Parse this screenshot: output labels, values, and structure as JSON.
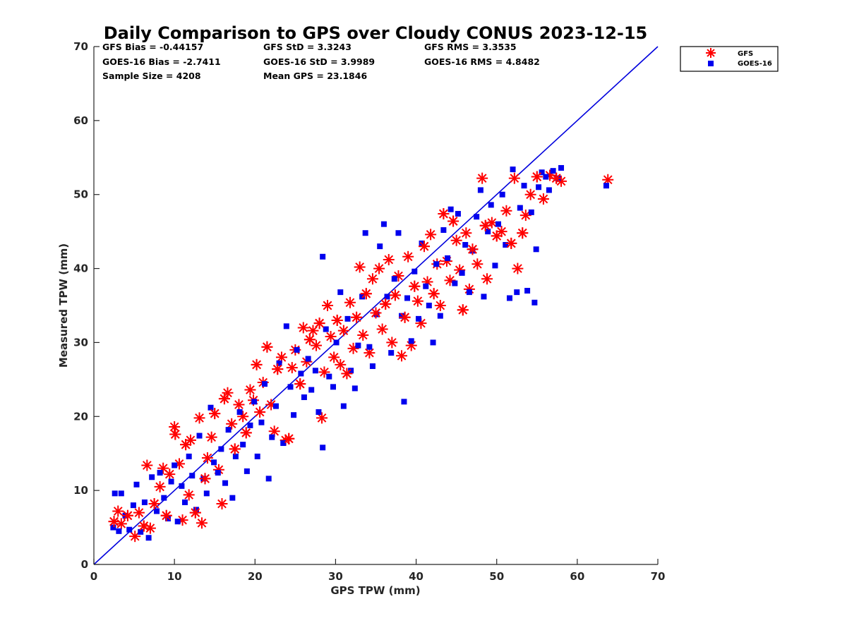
{
  "chart_data": {
    "type": "scatter",
    "title": "Daily Comparison to GPS over Cloudy CONUS 2023-12-15",
    "xlabel": "GPS TPW (mm)",
    "ylabel": "Measured TPW (mm)",
    "xlim": [
      0,
      70
    ],
    "ylim": [
      0,
      70
    ],
    "xticks": [
      "0",
      "10",
      "20",
      "30",
      "40",
      "50",
      "60",
      "70"
    ],
    "yticks": [
      "0",
      "10",
      "20",
      "30",
      "40",
      "50",
      "60",
      "70"
    ],
    "grid": false,
    "legend_position": "outside-top-right",
    "reference_line": {
      "from": [
        0,
        0
      ],
      "to": [
        70,
        70
      ],
      "color": "#0000dd"
    },
    "stats": [
      [
        "GFS Bias = -0.44157",
        "GFS StD = 3.3243",
        "GFS RMS = 3.3535"
      ],
      [
        "GOES-16 Bias = -2.7411",
        "GOES-16 StD = 3.9989",
        "GOES-16 RMS = 4.8482"
      ],
      [
        "Sample Size = 4208",
        "Mean GPS = 23.1846",
        ""
      ]
    ],
    "series": [
      {
        "name": "GFS",
        "marker": "asterisk",
        "color": "#ff0000",
        "points": [
          [
            2.5,
            5.8
          ],
          [
            3.0,
            7.2
          ],
          [
            3.4,
            5.5
          ],
          [
            4.2,
            6.6
          ],
          [
            5.1,
            3.8
          ],
          [
            5.6,
            7.0
          ],
          [
            6.2,
            5.2
          ],
          [
            6.6,
            13.4
          ],
          [
            7.0,
            4.9
          ],
          [
            7.5,
            8.2
          ],
          [
            8.2,
            10.5
          ],
          [
            8.6,
            13.0
          ],
          [
            9.0,
            6.6
          ],
          [
            9.4,
            12.2
          ],
          [
            10.0,
            18.6
          ],
          [
            10.1,
            17.6
          ],
          [
            10.6,
            13.6
          ],
          [
            11.0,
            6.0
          ],
          [
            11.4,
            16.2
          ],
          [
            11.8,
            9.4
          ],
          [
            12.0,
            16.8
          ],
          [
            12.6,
            7.0
          ],
          [
            13.1,
            19.8
          ],
          [
            13.4,
            5.6
          ],
          [
            13.8,
            11.6
          ],
          [
            14.1,
            14.4
          ],
          [
            14.6,
            17.2
          ],
          [
            15.0,
            20.4
          ],
          [
            15.5,
            12.8
          ],
          [
            15.9,
            8.2
          ],
          [
            16.2,
            22.4
          ],
          [
            16.6,
            23.2
          ],
          [
            17.1,
            19.0
          ],
          [
            17.5,
            15.6
          ],
          [
            18.0,
            21.6
          ],
          [
            18.5,
            20.0
          ],
          [
            18.9,
            17.8
          ],
          [
            19.4,
            23.6
          ],
          [
            19.8,
            22.2
          ],
          [
            20.2,
            27.0
          ],
          [
            20.6,
            20.6
          ],
          [
            21.0,
            24.6
          ],
          [
            21.5,
            29.4
          ],
          [
            22.0,
            21.6
          ],
          [
            22.4,
            18.0
          ],
          [
            22.8,
            26.4
          ],
          [
            23.3,
            28.0
          ],
          [
            23.8,
            16.8
          ],
          [
            24.2,
            17.0
          ],
          [
            24.6,
            26.6
          ],
          [
            25.0,
            29.0
          ],
          [
            25.6,
            24.4
          ],
          [
            26.0,
            32.0
          ],
          [
            26.4,
            27.4
          ],
          [
            26.8,
            30.4
          ],
          [
            27.2,
            31.6
          ],
          [
            27.6,
            29.6
          ],
          [
            28.0,
            32.6
          ],
          [
            28.3,
            19.8
          ],
          [
            28.6,
            26.0
          ],
          [
            29.0,
            35.0
          ],
          [
            29.4,
            30.8
          ],
          [
            29.8,
            28.0
          ],
          [
            30.2,
            33.0
          ],
          [
            30.6,
            27.0
          ],
          [
            31.0,
            31.6
          ],
          [
            31.4,
            25.8
          ],
          [
            31.8,
            35.4
          ],
          [
            32.2,
            29.2
          ],
          [
            32.6,
            33.4
          ],
          [
            33.0,
            40.2
          ],
          [
            33.4,
            31.0
          ],
          [
            33.8,
            36.6
          ],
          [
            34.2,
            28.6
          ],
          [
            34.6,
            38.6
          ],
          [
            35.0,
            34.0
          ],
          [
            35.4,
            40.0
          ],
          [
            35.8,
            31.8
          ],
          [
            36.2,
            35.2
          ],
          [
            36.6,
            41.2
          ],
          [
            37.0,
            30.0
          ],
          [
            37.4,
            36.4
          ],
          [
            37.8,
            39.0
          ],
          [
            38.2,
            28.2
          ],
          [
            38.6,
            33.4
          ],
          [
            39.0,
            41.6
          ],
          [
            39.4,
            29.6
          ],
          [
            39.8,
            37.6
          ],
          [
            40.2,
            35.6
          ],
          [
            40.6,
            32.6
          ],
          [
            41.0,
            43.0
          ],
          [
            41.4,
            38.2
          ],
          [
            41.8,
            44.6
          ],
          [
            42.2,
            36.6
          ],
          [
            42.6,
            40.6
          ],
          [
            43.0,
            35.0
          ],
          [
            43.4,
            47.4
          ],
          [
            43.8,
            41.0
          ],
          [
            44.2,
            38.4
          ],
          [
            44.6,
            46.4
          ],
          [
            45.0,
            43.8
          ],
          [
            45.4,
            39.8
          ],
          [
            45.8,
            34.4
          ],
          [
            46.2,
            44.8
          ],
          [
            46.6,
            37.2
          ],
          [
            47.0,
            42.6
          ],
          [
            47.6,
            40.6
          ],
          [
            48.2,
            52.2
          ],
          [
            48.6,
            45.8
          ],
          [
            48.8,
            38.6
          ],
          [
            49.4,
            46.2
          ],
          [
            50.0,
            44.4
          ],
          [
            50.6,
            45.0
          ],
          [
            51.2,
            47.8
          ],
          [
            51.8,
            43.4
          ],
          [
            52.2,
            52.2
          ],
          [
            52.6,
            40.0
          ],
          [
            53.2,
            44.8
          ],
          [
            53.6,
            47.2
          ],
          [
            54.2,
            50.0
          ],
          [
            55.0,
            52.4
          ],
          [
            55.8,
            49.4
          ],
          [
            56.6,
            52.6
          ],
          [
            57.4,
            52.2
          ],
          [
            58.0,
            51.8
          ],
          [
            63.8,
            52.0
          ]
        ]
      },
      {
        "name": "GOES-16",
        "marker": "square",
        "color": "#0000ee",
        "points": [
          [
            2.4,
            5.0
          ],
          [
            2.6,
            9.6
          ],
          [
            3.1,
            4.5
          ],
          [
            3.4,
            9.6
          ],
          [
            3.9,
            6.6
          ],
          [
            4.4,
            4.7
          ],
          [
            4.9,
            8.0
          ],
          [
            5.3,
            10.8
          ],
          [
            5.8,
            4.4
          ],
          [
            6.3,
            8.4
          ],
          [
            6.8,
            3.6
          ],
          [
            7.2,
            11.8
          ],
          [
            7.8,
            7.2
          ],
          [
            8.2,
            12.4
          ],
          [
            8.7,
            9.0
          ],
          [
            9.2,
            6.2
          ],
          [
            9.6,
            11.2
          ],
          [
            10.0,
            13.4
          ],
          [
            10.4,
            5.8
          ],
          [
            10.9,
            10.6
          ],
          [
            11.3,
            8.4
          ],
          [
            11.8,
            14.6
          ],
          [
            12.2,
            12.0
          ],
          [
            12.7,
            7.4
          ],
          [
            13.1,
            17.4
          ],
          [
            13.6,
            11.6
          ],
          [
            14.0,
            9.6
          ],
          [
            14.5,
            21.2
          ],
          [
            14.9,
            13.8
          ],
          [
            15.4,
            12.4
          ],
          [
            15.8,
            15.6
          ],
          [
            16.3,
            11.0
          ],
          [
            16.7,
            18.2
          ],
          [
            17.2,
            9.0
          ],
          [
            17.6,
            14.6
          ],
          [
            18.1,
            20.6
          ],
          [
            18.5,
            16.2
          ],
          [
            19.0,
            12.6
          ],
          [
            19.4,
            18.8
          ],
          [
            19.9,
            22.0
          ],
          [
            20.3,
            14.6
          ],
          [
            20.8,
            19.2
          ],
          [
            21.2,
            24.4
          ],
          [
            21.7,
            11.6
          ],
          [
            22.1,
            17.2
          ],
          [
            22.6,
            21.4
          ],
          [
            23.0,
            27.2
          ],
          [
            23.5,
            16.4
          ],
          [
            23.9,
            32.2
          ],
          [
            24.4,
            24.0
          ],
          [
            24.8,
            20.2
          ],
          [
            25.2,
            29.0
          ],
          [
            25.7,
            25.8
          ],
          [
            26.1,
            22.6
          ],
          [
            26.6,
            27.8
          ],
          [
            27.0,
            23.6
          ],
          [
            27.5,
            26.2
          ],
          [
            27.9,
            20.6
          ],
          [
            28.4,
            41.6
          ],
          [
            28.4,
            15.8
          ],
          [
            28.8,
            31.8
          ],
          [
            29.2,
            25.4
          ],
          [
            29.7,
            24.0
          ],
          [
            30.1,
            30.0
          ],
          [
            30.6,
            36.8
          ],
          [
            31.0,
            21.4
          ],
          [
            31.5,
            33.2
          ],
          [
            31.9,
            26.2
          ],
          [
            32.4,
            23.8
          ],
          [
            32.8,
            29.6
          ],
          [
            33.3,
            36.2
          ],
          [
            33.7,
            44.8
          ],
          [
            34.2,
            29.4
          ],
          [
            34.6,
            26.8
          ],
          [
            35.1,
            33.8
          ],
          [
            35.5,
            43.0
          ],
          [
            36.0,
            46.0
          ],
          [
            36.4,
            36.2
          ],
          [
            36.9,
            28.6
          ],
          [
            37.3,
            38.6
          ],
          [
            37.8,
            44.8
          ],
          [
            38.2,
            33.6
          ],
          [
            38.5,
            22.0
          ],
          [
            38.9,
            36.0
          ],
          [
            39.4,
            30.2
          ],
          [
            39.8,
            39.6
          ],
          [
            40.3,
            33.2
          ],
          [
            40.7,
            43.4
          ],
          [
            41.2,
            37.6
          ],
          [
            41.6,
            35.0
          ],
          [
            42.1,
            30.0
          ],
          [
            42.5,
            40.6
          ],
          [
            43.0,
            33.6
          ],
          [
            43.4,
            45.2
          ],
          [
            43.9,
            41.4
          ],
          [
            44.3,
            48.0
          ],
          [
            44.8,
            38.0
          ],
          [
            45.2,
            47.4
          ],
          [
            45.7,
            39.4
          ],
          [
            46.1,
            43.2
          ],
          [
            46.6,
            36.8
          ],
          [
            47.0,
            42.4
          ],
          [
            47.5,
            47.0
          ],
          [
            48.0,
            50.6
          ],
          [
            48.4,
            36.2
          ],
          [
            48.9,
            45.0
          ],
          [
            49.3,
            48.6
          ],
          [
            49.8,
            40.4
          ],
          [
            50.2,
            46.0
          ],
          [
            50.7,
            50.0
          ],
          [
            51.1,
            43.2
          ],
          [
            51.6,
            36.0
          ],
          [
            52.0,
            53.4
          ],
          [
            52.5,
            36.8
          ],
          [
            52.9,
            48.2
          ],
          [
            53.4,
            51.2
          ],
          [
            53.8,
            37.0
          ],
          [
            54.3,
            47.6
          ],
          [
            54.7,
            35.4
          ],
          [
            55.2,
            51.0
          ],
          [
            55.6,
            53.0
          ],
          [
            56.1,
            52.4
          ],
          [
            56.5,
            50.6
          ],
          [
            57.0,
            53.2
          ],
          [
            57.6,
            52.2
          ],
          [
            58.0,
            53.6
          ],
          [
            63.6,
            51.2
          ],
          [
            54.9,
            42.6
          ]
        ]
      }
    ]
  },
  "legend": {
    "items": [
      {
        "label": "GFS",
        "marker": "asterisk",
        "color": "#ff0000"
      },
      {
        "label": "GOES-16",
        "marker": "square",
        "color": "#0000ee"
      }
    ]
  }
}
